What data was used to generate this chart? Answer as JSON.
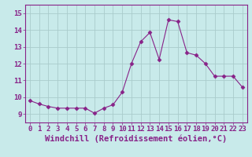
{
  "x": [
    0,
    1,
    2,
    3,
    4,
    5,
    6,
    7,
    8,
    9,
    10,
    11,
    12,
    13,
    14,
    15,
    16,
    17,
    18,
    19,
    20,
    21,
    22,
    23
  ],
  "y": [
    9.8,
    9.6,
    9.45,
    9.35,
    9.35,
    9.35,
    9.35,
    9.05,
    9.35,
    9.55,
    10.3,
    12.0,
    13.3,
    13.85,
    12.25,
    14.6,
    14.5,
    12.65,
    12.5,
    12.0,
    11.25,
    11.25,
    11.25,
    10.6
  ],
  "line_color": "#882288",
  "marker": "D",
  "marker_size": 2.5,
  "xlabel": "Windchill (Refroidissement éolien,°C)",
  "xlabel_fontsize": 7.5,
  "ylim": [
    8.5,
    15.5
  ],
  "xlim": [
    -0.5,
    23.5
  ],
  "yticks": [
    9,
    10,
    11,
    12,
    13,
    14,
    15
  ],
  "xticks": [
    0,
    1,
    2,
    3,
    4,
    5,
    6,
    7,
    8,
    9,
    10,
    11,
    12,
    13,
    14,
    15,
    16,
    17,
    18,
    19,
    20,
    21,
    22,
    23
  ],
  "bg_color": "#c8eaea",
  "grid_color": "#aacccc",
  "tick_label_fontsize": 6.5
}
